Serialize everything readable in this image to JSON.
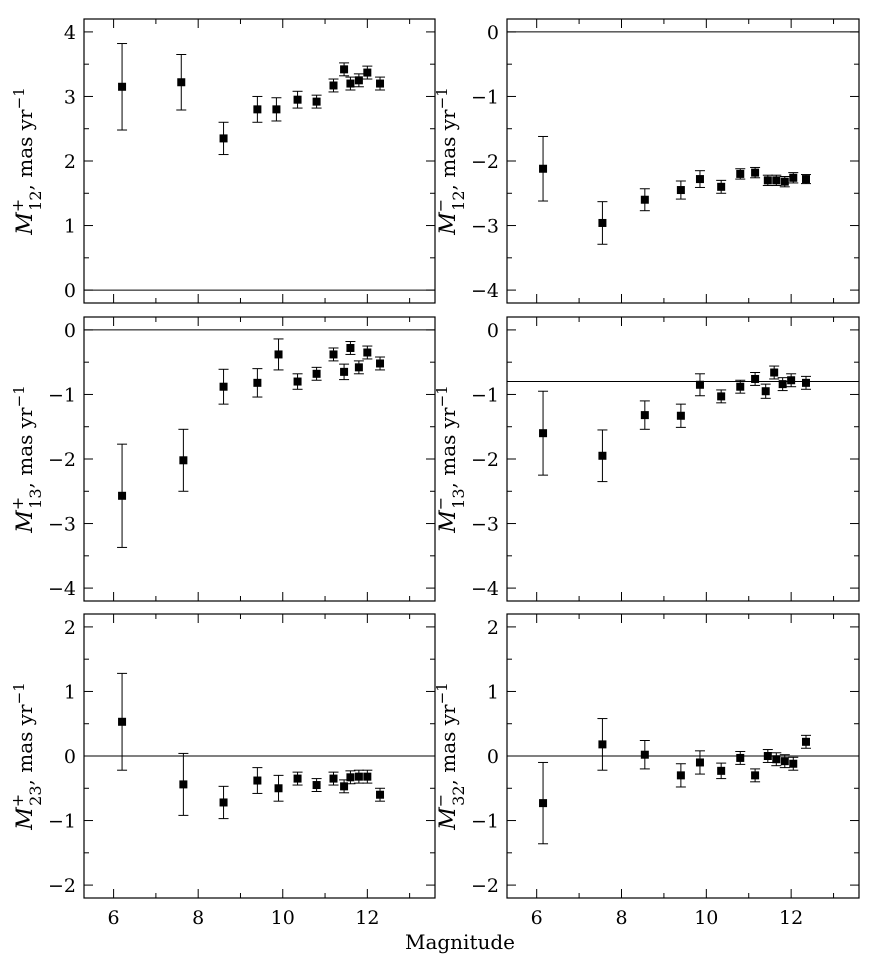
{
  "chart_data": [
    {
      "type": "scatter",
      "panel": "top-left",
      "ylabel": {
        "main": "M",
        "sup": "+",
        "sub": "12",
        "unit": ", mas yr",
        "unit_sup": "−1"
      },
      "xlim": [
        5.3,
        13.6
      ],
      "ylim": [
        -0.2,
        4.2
      ],
      "yticks": [
        0,
        1,
        2,
        3,
        4
      ],
      "ytick_labels": [
        "0",
        "1",
        "2",
        "3",
        "4"
      ],
      "xticks": [
        6,
        8,
        10,
        12
      ],
      "xtick_labels": [],
      "reference_line": 0,
      "series": [
        {
          "x": [
            6.2,
            7.6,
            8.6,
            9.4,
            9.85,
            10.35,
            10.8,
            11.2,
            11.45,
            11.6,
            11.8,
            12.0,
            12.3
          ],
          "y": [
            3.15,
            3.22,
            2.35,
            2.8,
            2.8,
            2.95,
            2.92,
            3.17,
            3.42,
            3.2,
            3.25,
            3.37,
            3.2
          ],
          "err": [
            0.67,
            0.43,
            0.25,
            0.2,
            0.18,
            0.13,
            0.1,
            0.1,
            0.1,
            0.1,
            0.1,
            0.1,
            0.1
          ]
        }
      ]
    },
    {
      "type": "scatter",
      "panel": "top-right",
      "ylabel": {
        "main": "M",
        "sup": "−",
        "sub": "12",
        "unit": ", mas yr",
        "unit_sup": "−1"
      },
      "xlim": [
        5.3,
        13.6
      ],
      "ylim": [
        -4.2,
        0.2
      ],
      "yticks": [
        0,
        -1,
        -2,
        -3,
        -4
      ],
      "ytick_labels": [
        "0",
        "−1",
        "−2",
        "−3",
        "−4"
      ],
      "xticks": [
        6,
        8,
        10,
        12
      ],
      "xtick_labels": [],
      "reference_line": 0,
      "series": [
        {
          "x": [
            6.15,
            7.55,
            8.55,
            9.4,
            9.85,
            10.35,
            10.8,
            11.15,
            11.45,
            11.65,
            11.85,
            12.05,
            12.35
          ],
          "y": [
            -2.12,
            -2.96,
            -2.6,
            -2.45,
            -2.28,
            -2.4,
            -2.2,
            -2.18,
            -2.3,
            -2.3,
            -2.32,
            -2.26,
            -2.28
          ],
          "err": [
            0.5,
            0.33,
            0.17,
            0.14,
            0.13,
            0.1,
            0.08,
            0.08,
            0.08,
            0.08,
            0.08,
            0.08,
            0.07
          ]
        }
      ]
    },
    {
      "type": "scatter",
      "panel": "middle-left",
      "ylabel": {
        "main": "M",
        "sup": "+",
        "sub": "13",
        "unit": ", mas yr",
        "unit_sup": "−1"
      },
      "xlim": [
        5.3,
        13.6
      ],
      "ylim": [
        -4.2,
        0.2
      ],
      "yticks": [
        0,
        -1,
        -2,
        -3,
        -4
      ],
      "ytick_labels": [
        "0",
        "−1",
        "−2",
        "−3",
        "−4"
      ],
      "xticks": [
        6,
        8,
        10,
        12
      ],
      "xtick_labels": [],
      "reference_line": 0,
      "series": [
        {
          "x": [
            6.2,
            7.65,
            8.6,
            9.4,
            9.9,
            10.35,
            10.8,
            11.2,
            11.45,
            11.6,
            11.8,
            12.0,
            12.3
          ],
          "y": [
            -2.57,
            -2.02,
            -0.88,
            -0.82,
            -0.38,
            -0.8,
            -0.68,
            -0.38,
            -0.65,
            -0.28,
            -0.58,
            -0.35,
            -0.52
          ],
          "err": [
            0.8,
            0.48,
            0.27,
            0.22,
            0.24,
            0.12,
            0.1,
            0.1,
            0.12,
            0.1,
            0.1,
            0.1,
            0.1
          ]
        }
      ]
    },
    {
      "type": "scatter",
      "panel": "middle-right",
      "ylabel": {
        "main": "M",
        "sup": "−",
        "sub": "13",
        "unit": ", mas yr",
        "unit_sup": "−1"
      },
      "xlim": [
        5.3,
        13.6
      ],
      "ylim": [
        -4.2,
        0.2
      ],
      "yticks": [
        0,
        -1,
        -2,
        -3,
        -4
      ],
      "ytick_labels": [
        "0",
        "−1",
        "−2",
        "−3",
        "−4"
      ],
      "xticks": [
        6,
        8,
        10,
        12
      ],
      "xtick_labels": [],
      "reference_line": -0.8,
      "series": [
        {
          "x": [
            6.15,
            7.55,
            8.55,
            9.4,
            9.85,
            10.35,
            10.8,
            11.15,
            11.4,
            11.6,
            11.8,
            12.0,
            12.35
          ],
          "y": [
            -1.6,
            -1.95,
            -1.32,
            -1.33,
            -0.85,
            -1.03,
            -0.88,
            -0.76,
            -0.95,
            -0.66,
            -0.84,
            -0.78,
            -0.82
          ],
          "err": [
            0.65,
            0.4,
            0.22,
            0.18,
            0.17,
            0.1,
            0.1,
            0.1,
            0.11,
            0.1,
            0.1,
            0.1,
            0.1
          ]
        }
      ]
    },
    {
      "type": "scatter",
      "panel": "bottom-left",
      "ylabel": {
        "main": "M",
        "sup": "+",
        "sub": "23",
        "unit": ", mas yr",
        "unit_sup": "−1"
      },
      "xlim": [
        5.3,
        13.6
      ],
      "ylim": [
        -2.2,
        2.2
      ],
      "yticks": [
        -2,
        -1,
        0,
        1,
        2
      ],
      "ytick_labels": [
        "−2",
        "−1",
        "0",
        "1",
        "2"
      ],
      "xticks": [
        6,
        8,
        10,
        12
      ],
      "xtick_labels": [
        "6",
        "8",
        "10",
        "12"
      ],
      "xlabel": "Magnitude",
      "reference_line": 0,
      "series": [
        {
          "x": [
            6.2,
            7.65,
            8.6,
            9.4,
            9.9,
            10.35,
            10.8,
            11.2,
            11.45,
            11.6,
            11.8,
            12.0,
            12.3
          ],
          "y": [
            0.53,
            -0.44,
            -0.72,
            -0.38,
            -0.5,
            -0.35,
            -0.45,
            -0.35,
            -0.47,
            -0.33,
            -0.32,
            -0.32,
            -0.6
          ],
          "err": [
            0.75,
            0.48,
            0.25,
            0.2,
            0.2,
            0.1,
            0.1,
            0.1,
            0.1,
            0.1,
            0.1,
            0.1,
            0.1
          ]
        }
      ]
    },
    {
      "type": "scatter",
      "panel": "bottom-right",
      "ylabel": {
        "main": "M",
        "sup": "−",
        "sub": "32",
        "unit": ", mas yr",
        "unit_sup": "−1"
      },
      "xlim": [
        5.3,
        13.6
      ],
      "ylim": [
        -2.2,
        2.2
      ],
      "yticks": [
        -2,
        -1,
        0,
        1,
        2
      ],
      "ytick_labels": [
        "−2",
        "−1",
        "0",
        "1",
        "2"
      ],
      "xticks": [
        6,
        8,
        10,
        12
      ],
      "xtick_labels": [
        "6",
        "8",
        "10",
        "12"
      ],
      "xlabel": "",
      "reference_line": 0,
      "series": [
        {
          "x": [
            6.15,
            7.55,
            8.55,
            9.4,
            9.85,
            10.35,
            10.8,
            11.15,
            11.45,
            11.65,
            11.85,
            12.05,
            12.35
          ],
          "y": [
            -0.73,
            0.18,
            0.02,
            -0.3,
            -0.1,
            -0.23,
            -0.03,
            -0.3,
            0.0,
            -0.05,
            -0.08,
            -0.12,
            0.22
          ],
          "err": [
            0.63,
            0.4,
            0.22,
            0.18,
            0.18,
            0.12,
            0.1,
            0.1,
            0.1,
            0.1,
            0.1,
            0.1,
            0.1
          ]
        }
      ]
    }
  ]
}
